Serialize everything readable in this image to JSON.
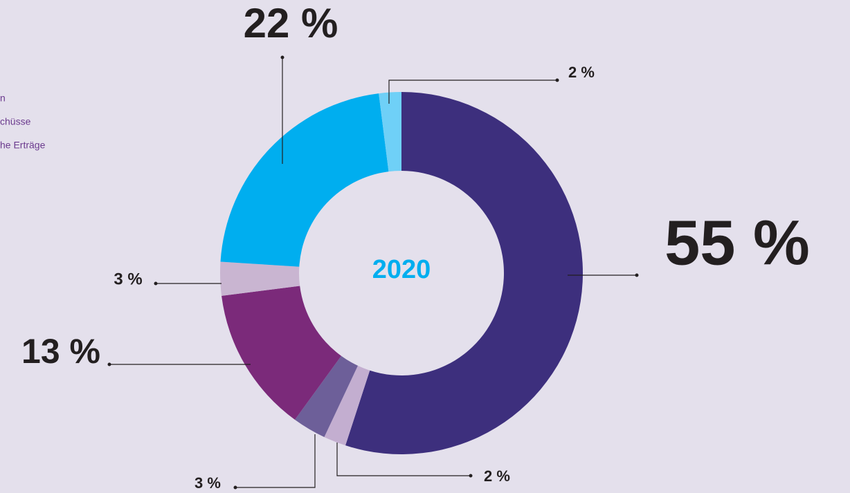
{
  "chart_data": {
    "type": "donut",
    "center_label": "2020",
    "legend_texts": [
      "n",
      "chüsse",
      "he Erträge"
    ],
    "values": [
      55,
      2,
      3,
      13,
      3,
      22,
      2
    ],
    "value_labels": [
      "55 %",
      "2 %",
      "3 %",
      "13 %",
      "3 %",
      "22 %",
      "2 %"
    ],
    "colors": [
      "#3d2f7d",
      "#c3aed0",
      "#6d5f99",
      "#7b2a7a",
      "#c9b5d1",
      "#00aeef",
      "#6fd0f7"
    ]
  }
}
